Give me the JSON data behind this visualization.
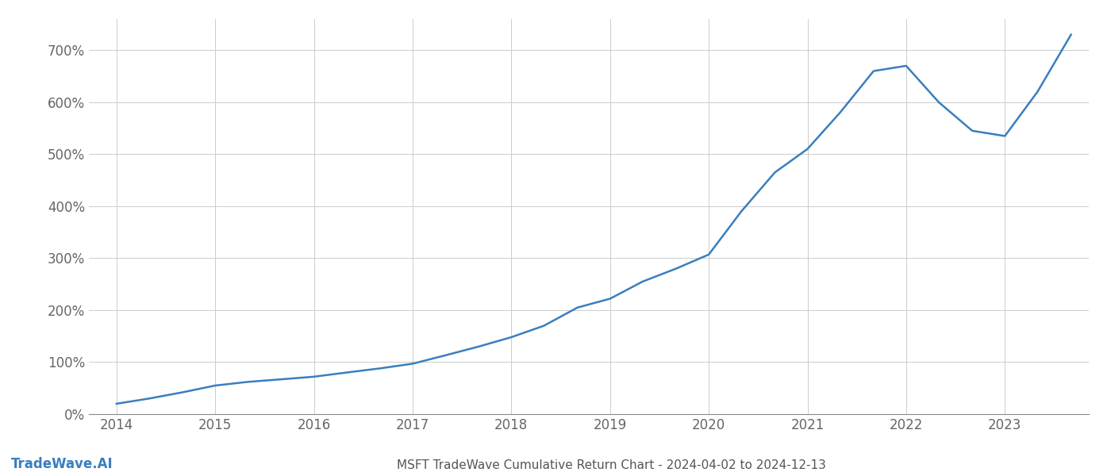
{
  "title": "MSFT TradeWave Cumulative Return Chart - 2024-04-02 to 2024-12-13",
  "watermark": "TradeWave.AI",
  "line_color": "#3a7ebf",
  "background_color": "#ffffff",
  "grid_color": "#cccccc",
  "x_years": [
    2014,
    2015,
    2016,
    2017,
    2018,
    2019,
    2020,
    2021,
    2022,
    2023
  ],
  "data_x": [
    2014.0,
    2014.33,
    2014.67,
    2015.0,
    2015.33,
    2015.67,
    2016.0,
    2016.33,
    2016.67,
    2017.0,
    2017.33,
    2017.67,
    2018.0,
    2018.33,
    2018.67,
    2019.0,
    2019.33,
    2019.67,
    2020.0,
    2020.33,
    2020.67,
    2021.0,
    2021.33,
    2021.67,
    2022.0,
    2022.33,
    2022.67,
    2023.0,
    2023.33,
    2023.67
  ],
  "data_y": [
    20,
    30,
    42,
    55,
    62,
    67,
    72,
    80,
    88,
    97,
    113,
    130,
    148,
    170,
    205,
    222,
    255,
    280,
    307,
    390,
    465,
    510,
    580,
    660,
    670,
    600,
    545,
    535,
    620,
    730
  ],
  "ylim": [
    0,
    760
  ],
  "yticks": [
    0,
    100,
    200,
    300,
    400,
    500,
    600,
    700
  ],
  "title_fontsize": 11,
  "tick_fontsize": 12,
  "watermark_fontsize": 12,
  "line_width": 1.8,
  "spine_color": "#888888",
  "tick_color": "#666666"
}
